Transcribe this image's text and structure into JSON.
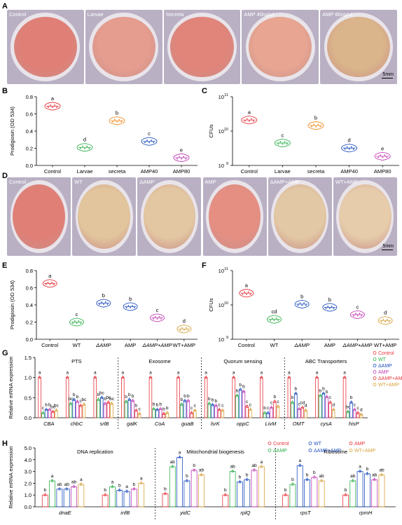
{
  "panels": {
    "A": "A",
    "B": "B",
    "C": "C",
    "D": "D",
    "E": "E",
    "F": "F",
    "G": "G",
    "H": "H"
  },
  "scale_bar": "5mm",
  "plates_A": [
    {
      "label": "Control",
      "color": "#e07f76"
    },
    {
      "label": "Larvae",
      "color": "#e59d8f"
    },
    {
      "label": "Secreta",
      "color": "#e1847a"
    },
    {
      "label": "AMP 40ng/ul",
      "color": "#e8a692"
    },
    {
      "label": "AMP 80ng/ul",
      "color": "#dab48a"
    }
  ],
  "plates_D": [
    {
      "label": "Control",
      "color": "#e07f76"
    },
    {
      "label": "WT",
      "color": "#e2c59c"
    },
    {
      "label": "ΔAMP",
      "color": "#e3c7a2"
    },
    {
      "label": "AMP",
      "color": "#e58f83"
    },
    {
      "label": "ΔAMP+AMP",
      "color": "#e2c8a4"
    },
    {
      "label": "WT+AMP",
      "color": "#e6ccab"
    }
  ],
  "colors": {
    "control": "#e8333a",
    "larvae": "#2db04b",
    "secreta": "#f08a1d",
    "amp40": "#1f4fbf",
    "amp80": "#c33bb4",
    "wt": "#2db04b",
    "damp": "#1f4fbf",
    "amp": "#1f4fbf",
    "damp_amp": "#e8333a",
    "wt_amp": "#d6a23a"
  },
  "chart_data": [
    {
      "id": "B",
      "type": "violin",
      "categories": [
        "Control",
        "Larvae",
        "secreta",
        "AMP40",
        "AMP80"
      ],
      "values": [
        0.69,
        0.21,
        0.52,
        0.28,
        0.09
      ],
      "letters": [
        "a",
        "d",
        "b",
        "c",
        "e"
      ],
      "ylabel": "Prodigiosin (OD 534)",
      "ylim": [
        0,
        0.8
      ],
      "yticks": [
        "0.0",
        "0.2",
        "0.4",
        "0.6",
        "0.8"
      ]
    },
    {
      "id": "C",
      "type": "violin",
      "log": true,
      "categories": [
        "Control",
        "Larvae",
        "secreta",
        "AMP40",
        "AMP80"
      ],
      "values": [
        21000000000,
        4500000000,
        14500000000,
        3200000000,
        1850000000
      ],
      "letters": [
        "a",
        "c",
        "b",
        "d",
        "e"
      ],
      "ylabel": "CFUs",
      "ylim": [
        1000000000,
        100000000000
      ],
      "yticks": [
        "10",
        "10",
        "10"
      ],
      "yexp": [
        "9",
        "10",
        "11"
      ]
    },
    {
      "id": "E",
      "type": "violin",
      "categories": [
        "Control",
        "WT",
        "ΔAMP",
        "AMP",
        "ΔAMP+AMP",
        "WT+AMP"
      ],
      "values": [
        0.65,
        0.2,
        0.42,
        0.38,
        0.25,
        0.12
      ],
      "letters": [
        "a",
        "c",
        "b",
        "b",
        "c",
        "d"
      ],
      "ylabel": "Prodigiosin (OD 534)",
      "ylim": [
        0,
        0.8
      ],
      "yticks": [
        "0.0",
        "0.2",
        "0.4",
        "0.6",
        "0.8"
      ]
    },
    {
      "id": "F",
      "type": "violin",
      "log": true,
      "categories": [
        "Control",
        "WT",
        "ΔAMP",
        "AMP",
        "ΔAMP+AMP",
        "WT+AMP"
      ],
      "values": [
        22000000000,
        3800000000,
        10500000000,
        8500000000,
        5200000000,
        3500000000
      ],
      "letters": [
        "a",
        "cd",
        "b",
        "b",
        "c",
        "d"
      ],
      "ylabel": "CFUs",
      "ylim": [
        1000000000,
        100000000000
      ],
      "yticks": [
        "10",
        "10",
        "10"
      ],
      "yexp": [
        "9",
        "10",
        "11"
      ]
    },
    {
      "id": "G",
      "type": "bar",
      "ylabel": "Relative mRNA expression",
      "ylim": [
        0,
        1.5
      ],
      "yticks": [
        "0.0",
        "0.5",
        "1.0",
        "1.5"
      ],
      "groups": [
        "PTS",
        "Exosome",
        "Quorum sensing",
        "ABC Transporters"
      ],
      "categories": [
        "CBA",
        "chbC",
        "srlB",
        "galK",
        "CoA",
        "guaB",
        "lsrK",
        "oppC",
        "LivM",
        "OMT",
        "cysA",
        "hisP"
      ],
      "series": [
        {
          "name": "Control",
          "values": [
            1.0,
            1.0,
            1.0,
            1.0,
            1.0,
            1.0,
            1.0,
            1.0,
            1.0,
            1.0,
            1.0,
            1.0
          ]
        },
        {
          "name": "WT",
          "values": [
            0.12,
            0.35,
            0.45,
            0.4,
            0.22,
            0.33,
            0.35,
            0.55,
            0.12,
            0.38,
            0.55,
            0.15
          ]
        },
        {
          "name": "ΔAMP",
          "values": [
            0.2,
            0.45,
            0.5,
            0.45,
            0.2,
            0.42,
            0.32,
            0.7,
            0.12,
            0.6,
            0.6,
            0.38
          ]
        },
        {
          "name": "AMP",
          "values": [
            0.2,
            0.4,
            0.35,
            0.42,
            0.22,
            0.42,
            0.3,
            0.65,
            0.25,
            0.22,
            0.52,
            0.2
          ]
        },
        {
          "name": "ΔAMP+AMP",
          "values": [
            0.15,
            0.3,
            0.38,
            0.18,
            0.1,
            0.12,
            0.2,
            0.28,
            0.4,
            0.25,
            0.38,
            0.12
          ]
        },
        {
          "name": "WT+AMP",
          "values": [
            0.18,
            0.33,
            0.35,
            0.1,
            0.12,
            0.18,
            0.18,
            0.2,
            0.28,
            0.18,
            0.2,
            0.08
          ]
        }
      ],
      "letters": [
        [
          "a",
          "c",
          "b",
          "b",
          "bc",
          "bc"
        ],
        [
          "a",
          "bc",
          "b",
          "b",
          "c",
          "bc"
        ],
        [
          "a",
          "b",
          "bc",
          "b",
          "bc",
          "bc"
        ],
        [
          "a",
          "b",
          "b",
          "b",
          "b",
          "c"
        ],
        [
          "a",
          "b",
          "b",
          "b",
          "b",
          "b"
        ],
        [
          "a",
          "b",
          "b",
          "b",
          "c",
          "c"
        ],
        [
          "a",
          "b",
          "b",
          "b",
          "c",
          "c"
        ],
        [
          "a",
          "b",
          "b",
          "b",
          "c",
          "c"
        ],
        [
          "a",
          "b",
          "c",
          "c",
          "b",
          "c"
        ],
        [
          "a",
          "b",
          "b",
          "c",
          "cd",
          "d"
        ],
        [
          "a",
          "b",
          "b",
          "b",
          "c",
          "d"
        ],
        [
          "a",
          "bc",
          "b",
          "c",
          "c",
          "d"
        ]
      ],
      "legend": [
        "Control",
        "WT",
        "ΔAMP",
        "AMP",
        "ΔAMP+AMP",
        "WT+AMP"
      ]
    },
    {
      "id": "H",
      "type": "bar",
      "ylabel": "Relative mRNA expression",
      "ylim": [
        0,
        5
      ],
      "yticks": [
        "0.0",
        "1.0",
        "2.0",
        "3.0",
        "4.0",
        "5.0"
      ],
      "groups": [
        "DNA replication",
        "Mitochondrial biogenesis",
        "Ribosome"
      ],
      "categories": [
        "dnaE",
        "infB",
        "yidC",
        "rplQ",
        "rpsT",
        "rpmH"
      ],
      "series": [
        {
          "name": "Control",
          "values": [
            1.0,
            1.0,
            1.1,
            1.0,
            1.0,
            1.0
          ]
        },
        {
          "name": "WT",
          "values": [
            2.2,
            1.7,
            3.4,
            3.0,
            1.9,
            2.2
          ]
        },
        {
          "name": "ΔAMP",
          "values": [
            1.5,
            1.4,
            4.2,
            2.1,
            3.5,
            3.0
          ]
        },
        {
          "name": "AMP",
          "values": [
            1.5,
            1.3,
            2.2,
            2.3,
            2.3,
            2.8
          ]
        },
        {
          "name": "ΔAMP+AMP",
          "values": [
            1.7,
            1.5,
            3.1,
            3.1,
            2.5,
            2.3
          ]
        },
        {
          "name": "WT+AMP",
          "values": [
            1.9,
            2.0,
            2.7,
            3.4,
            2.2,
            2.7
          ]
        }
      ],
      "letters": [
        [
          "b",
          "a",
          "ab",
          "ab",
          "ab",
          "a"
        ],
        [
          "b",
          "a",
          "b",
          "a",
          "b",
          "a"
        ],
        [
          "b",
          "ab",
          "a",
          "b",
          "b",
          "ab"
        ],
        [
          "b",
          "ab",
          "b",
          "b",
          "ab",
          "a"
        ],
        [
          "b",
          "b",
          "a",
          "b",
          "b",
          "ab"
        ],
        [
          "b",
          "ab",
          "a",
          "b",
          "ab",
          "ab"
        ]
      ],
      "legend": [
        "Control",
        "WT",
        "AMP",
        "ΔAMP",
        "ΔAMP+AMP",
        "WT+AMP"
      ]
    }
  ]
}
